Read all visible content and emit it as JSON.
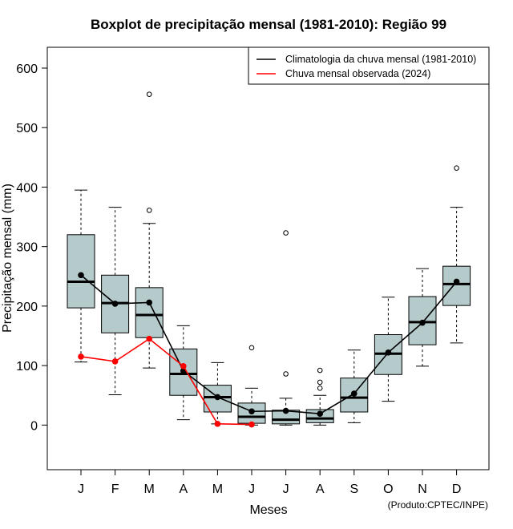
{
  "chart_data": {
    "type": "boxplot",
    "title": "Boxplot de precipitação mensal (1981-2010): Região 99",
    "xlabel": "Meses",
    "ylabel": "Precipitação mensal (mm)",
    "ylim": [
      -75,
      635
    ],
    "yticks": [
      0,
      100,
      200,
      300,
      400,
      500,
      600
    ],
    "categories": [
      "J",
      "F",
      "M",
      "A",
      "M",
      "J",
      "J",
      "A",
      "S",
      "O",
      "N",
      "D"
    ],
    "boxes": [
      {
        "low": 106,
        "q1": 197,
        "median": 241,
        "q3": 320,
        "high": 395,
        "outliers": []
      },
      {
        "low": 51,
        "q1": 155,
        "median": 205,
        "q3": 252,
        "high": 366,
        "outliers": []
      },
      {
        "low": 96,
        "q1": 147,
        "median": 185,
        "q3": 231,
        "high": 339,
        "outliers": [
          361,
          556
        ]
      },
      {
        "low": 9,
        "q1": 50,
        "median": 86,
        "q3": 128,
        "high": 167,
        "outliers": []
      },
      {
        "low": 2,
        "q1": 22,
        "median": 47,
        "q3": 67,
        "high": 105,
        "outliers": []
      },
      {
        "low": 0,
        "q1": 3,
        "median": 14,
        "q3": 37,
        "high": 62,
        "outliers": [
          130
        ]
      },
      {
        "low": 0,
        "q1": 2,
        "median": 9,
        "q3": 25,
        "high": 45,
        "outliers": [
          86,
          323
        ]
      },
      {
        "low": 0,
        "q1": 4,
        "median": 11,
        "q3": 26,
        "high": 50,
        "outliers": [
          62,
          72,
          92
        ]
      },
      {
        "low": 4,
        "q1": 22,
        "median": 46,
        "q3": 79,
        "high": 126,
        "outliers": []
      },
      {
        "low": 40,
        "q1": 85,
        "median": 120,
        "q3": 152,
        "high": 215,
        "outliers": []
      },
      {
        "low": 99,
        "q1": 135,
        "median": 173,
        "q3": 216,
        "high": 263,
        "outliers": []
      },
      {
        "low": 138,
        "q1": 201,
        "median": 237,
        "q3": 267,
        "high": 366,
        "outliers": [
          432
        ]
      }
    ],
    "series": [
      {
        "name": "Climatologia da chuva mensal (1981-2010)",
        "color": "#000000",
        "values": [
          252,
          204,
          206,
          91,
          47,
          23,
          24,
          19,
          53,
          122,
          172,
          241
        ]
      },
      {
        "name": "Chuva mensal observada (2024)",
        "color": "#ff0000",
        "values": [
          115,
          107,
          145,
          99,
          2,
          1,
          null,
          null,
          null,
          null,
          null,
          null
        ]
      }
    ],
    "legend_position": "top-right",
    "box_fill": "#b5caca",
    "credit": "(Produto:CPTEC/INPE)"
  }
}
